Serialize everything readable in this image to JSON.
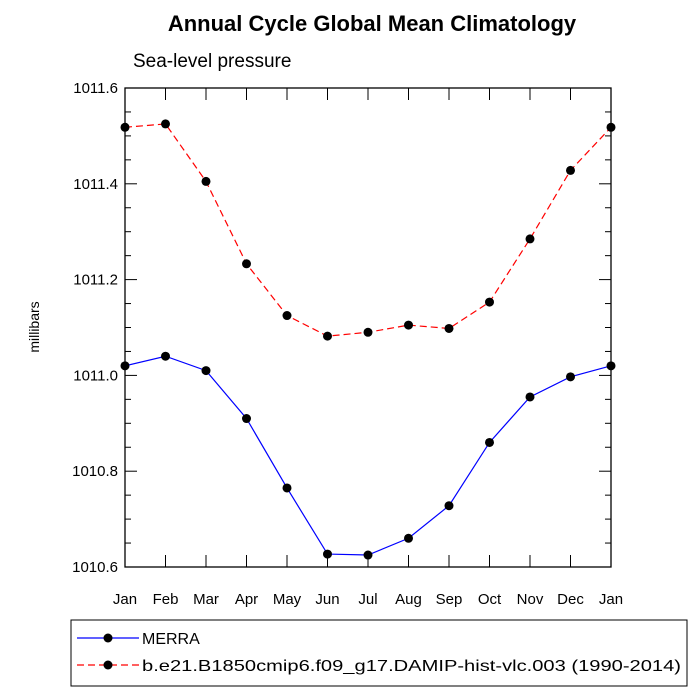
{
  "chart_data": {
    "type": "line",
    "title": "Annual Cycle Global Mean Climatology",
    "subtitle": "Sea-level pressure",
    "xlabel": "",
    "ylabel": "millibars",
    "categories": [
      "Jan",
      "Feb",
      "Mar",
      "Apr",
      "May",
      "Jun",
      "Jul",
      "Aug",
      "Sep",
      "Oct",
      "Nov",
      "Dec",
      "Jan"
    ],
    "ylim": [
      1010.6,
      1011.6
    ],
    "yticks": [
      "1010.6",
      "1010.8",
      "1011.0",
      "1011.2",
      "1011.4",
      "1011.6"
    ],
    "ytick_values": [
      1010.6,
      1010.8,
      1011.0,
      1011.2,
      1011.4,
      1011.6
    ],
    "grid": false,
    "legend_position": "bottom",
    "series": [
      {
        "name": "MERRA",
        "color": "#0000ff",
        "dash": "solid",
        "values": [
          1011.02,
          1011.04,
          1011.01,
          1010.91,
          1010.765,
          1010.627,
          1010.625,
          1010.66,
          1010.728,
          1010.86,
          1010.955,
          1010.997,
          1011.02
        ]
      },
      {
        "name": "b.e21.B1850cmip6.f09_g17.DAMIP-hist-vlc.003 (1990-2014)",
        "color": "#ff0000",
        "dash": "dashed",
        "values": [
          1011.518,
          1011.525,
          1011.405,
          1011.233,
          1011.125,
          1011.082,
          1011.09,
          1011.105,
          1011.098,
          1011.153,
          1011.285,
          1011.428,
          1011.518
        ]
      }
    ]
  }
}
